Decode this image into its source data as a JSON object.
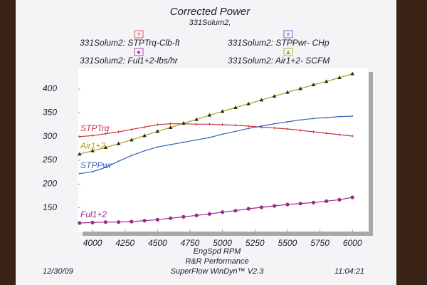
{
  "chart_data": {
    "type": "line",
    "title": "Corrected Power",
    "subtitle": "331Solum2,",
    "x_label": "EngSpd  RPM",
    "footer": {
      "date": "12/30/09",
      "shop": "R&R Performance",
      "software": "SuperFlow WinDyn™ V2.3",
      "time": "11:04:21"
    },
    "x": [
      3900,
      4000,
      4100,
      4200,
      4300,
      4400,
      4500,
      4600,
      4700,
      4800,
      4900,
      5000,
      5100,
      5200,
      5300,
      5400,
      5500,
      5600,
      5700,
      5800,
      5900,
      6000
    ],
    "xlim": [
      3890,
      6125
    ],
    "xticks": [
      4000,
      4250,
      4500,
      4750,
      5000,
      5250,
      5500,
      5750,
      6000
    ],
    "ylim": [
      100,
      445
    ],
    "yticks": [
      150,
      200,
      250,
      300,
      350,
      400
    ],
    "grid": false,
    "series": [
      {
        "name": "331Solum2: STPTrq-Clb-ft",
        "short_label": "STPTrq",
        "legend_symbol": "+",
        "marker": "plus",
        "color": "#c8323c",
        "values": [
          300,
          302,
          306,
          310,
          315,
          320,
          325,
          327,
          327,
          326,
          326,
          325,
          324,
          322,
          320,
          318,
          316,
          313,
          310,
          307,
          304,
          301
        ]
      },
      {
        "name": "331Solum2: STPPwr- CHp",
        "short_label": "STPPwr",
        "legend_symbol": "×",
        "marker": "dot",
        "color": "#3a5fc0",
        "values": [
          222,
          226,
          235,
          248,
          260,
          270,
          278,
          283,
          288,
          293,
          298,
          305,
          311,
          317,
          322,
          327,
          331,
          335,
          338,
          340,
          342,
          343
        ]
      },
      {
        "name": "331Solum2: Ful1+2-lbs/hr",
        "short_label": "Ful1+2",
        "legend_symbol": "●",
        "marker": "circle",
        "color": "#9a2a8a",
        "values": [
          118,
          119,
          120,
          120,
          121,
          123,
          125,
          128,
          131,
          134,
          137,
          141,
          144,
          148,
          151,
          154,
          157,
          159,
          161,
          164,
          167,
          172
        ]
      },
      {
        "name": "331Solum2: Air1+2- SCFM",
        "short_label": "Air1+2",
        "legend_symbol": "▲",
        "marker": "triangle",
        "color": "#a8a020",
        "values": [
          263,
          270,
          277,
          285,
          293,
          302,
          311,
          319,
          328,
          336,
          345,
          353,
          361,
          369,
          377,
          385,
          393,
          401,
          409,
          416,
          424,
          432
        ]
      }
    ]
  }
}
